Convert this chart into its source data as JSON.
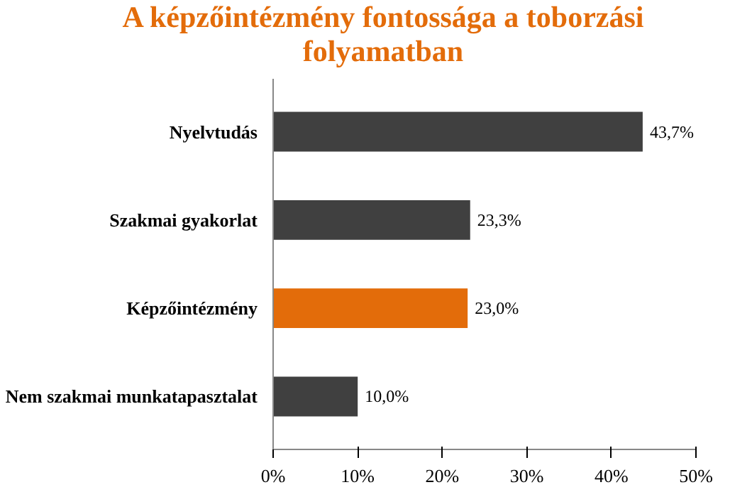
{
  "chart_data": {
    "type": "bar",
    "orientation": "horizontal",
    "title": "A képzőintézmény fontossága a toborzási folyamatban",
    "categories": [
      "Nyelvtudás",
      "Szakmai gyakorlat",
      "Képzőintézmény",
      "Nem szakmai munkatapasztalat"
    ],
    "values": [
      43.7,
      23.3,
      23.0,
      10.0
    ],
    "colors": [
      "#404040",
      "#404040",
      "#e36c0a",
      "#404040"
    ],
    "value_labels": [
      "43,7%",
      "23,3%",
      "23,0%",
      "10,0%"
    ],
    "xlim": [
      0,
      50
    ],
    "xticks": [
      {
        "value": 0,
        "label": "0%"
      },
      {
        "value": 10,
        "label": "10%"
      },
      {
        "value": 20,
        "label": "20%"
      },
      {
        "value": 30,
        "label": "30%"
      },
      {
        "value": 40,
        "label": "40%"
      },
      {
        "value": 50,
        "label": "50%"
      }
    ],
    "grid": false
  }
}
